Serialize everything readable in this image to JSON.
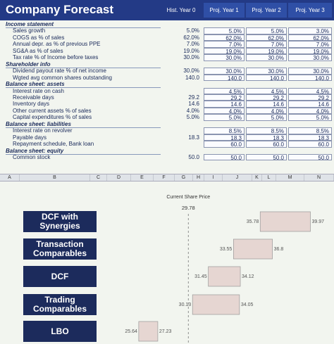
{
  "table": {
    "title": "Company Forecast",
    "columns": [
      "Hist. Year 0",
      "Proj. Year 1",
      "Proj. Year 2",
      "Proj. Year 3"
    ],
    "rows": [
      {
        "section": "Income statement"
      },
      {
        "label": "Sales growth",
        "values": [
          "5.0%",
          "5.0%",
          "5.0%",
          "3.0%"
        ]
      },
      {
        "label": "COGS as % of sales",
        "values": [
          "62.0%",
          "62.0%",
          "62.0%",
          "62.0%"
        ]
      },
      {
        "label": "Annual depr. as % of previous PPE",
        "values": [
          "7.0%",
          "7.0%",
          "7.0%",
          "7.0%"
        ]
      },
      {
        "label": "SG&A as % of sales",
        "values": [
          "19.0%",
          "19.0%",
          "19.0%",
          "19.0%"
        ]
      },
      {
        "label": "Tax rate % of Income before taxes",
        "values": [
          "30.0%",
          "30.0%",
          "30.0%",
          "30.0%"
        ]
      },
      {
        "section": "Shareholder info"
      },
      {
        "label": "Dividend payout rate % of net income",
        "values": [
          "30.0%",
          "30.0%",
          "30.0%",
          "30.0%"
        ]
      },
      {
        "label": "Wgted avg common shares outstanding",
        "values": [
          "140.0",
          "140.0",
          "140.0",
          "140.0"
        ]
      },
      {
        "section": "Balance sheet: assets"
      },
      {
        "label": "Interest rate on cash",
        "values": [
          null,
          "4.5%",
          "4.5%",
          "4.5%"
        ]
      },
      {
        "label": "Receivable days",
        "values": [
          "29.2",
          "29.2",
          "29.2",
          "29.2"
        ]
      },
      {
        "label": "Inventory days",
        "values": [
          "14.6",
          "14.6",
          "14.6",
          "14.6"
        ]
      },
      {
        "label": "Other current assets % of sales",
        "values": [
          "4.0%",
          "4.0%",
          "4.0%",
          "4.0%"
        ]
      },
      {
        "label": "Capital expenditures % of sales",
        "values": [
          "5.0%",
          "5.0%",
          "5.0%",
          "5.0%"
        ]
      },
      {
        "section": "Balance sheet: liabilities"
      },
      {
        "label": "Interest rate on revolver",
        "values": [
          null,
          "8.5%",
          "8.5%",
          "8.5%"
        ]
      },
      {
        "label": "Payable days",
        "values": [
          "18.3",
          "18.3",
          "18.3",
          "18.3"
        ]
      },
      {
        "label": "Repayment schedule, Bank loan",
        "values": [
          null,
          "60.0",
          "60.0",
          "60.0"
        ]
      },
      {
        "section": "Balance sheet: equity"
      },
      {
        "label": "Common stock",
        "values": [
          "50.0",
          "50.0",
          "50.0",
          "50.0"
        ]
      }
    ]
  },
  "column_letters": [
    "A",
    "B",
    "C",
    "D",
    "E",
    "F",
    "G",
    "H",
    "I",
    "J",
    "K",
    "L",
    "M",
    "N"
  ],
  "chart_data": {
    "type": "floating-bar",
    "categories": [
      "DCF with Synergies",
      "Transaction Comparables",
      "DCF",
      "Trading Comparables",
      "LBO"
    ],
    "low": [
      35.78,
      33.55,
      31.45,
      30.13,
      25.64
    ],
    "high": [
      39.97,
      36.8,
      34.12,
      34.05,
      27.23
    ],
    "color": "#e6d6d2",
    "xlim": [
      23,
      42
    ],
    "reference": {
      "label": "Current Share Price",
      "value": 29.78
    }
  }
}
